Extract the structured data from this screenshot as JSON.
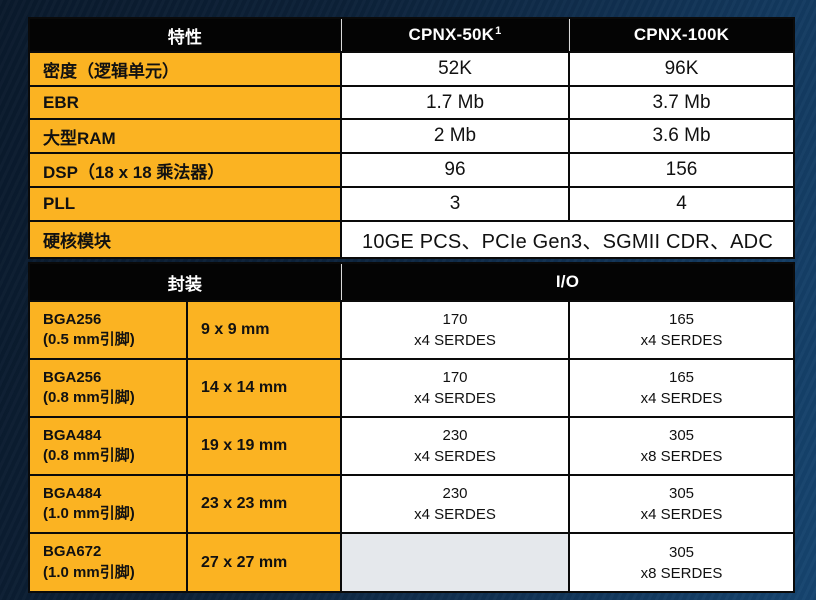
{
  "colors": {
    "accent_yellow": "#FBB322",
    "header_black": "#040404",
    "cell_white": "#FFFFFF",
    "empty_gray": "#E5E8EC",
    "background_navy": "#0E2A47"
  },
  "features_table": {
    "header": [
      "特性",
      "CPNX-50K",
      "CPNX-100K"
    ],
    "header_footnote_sup": "1",
    "rows": [
      {
        "label": "密度（逻辑单元）",
        "values": [
          "52K",
          "96K"
        ]
      },
      {
        "label": "EBR",
        "values": [
          "1.7 Mb",
          "3.7 Mb"
        ]
      },
      {
        "label": "大型RAM",
        "values": [
          "2 Mb",
          "3.6 Mb"
        ]
      },
      {
        "label": "DSP（18 x 18 乘法器）",
        "values": [
          "96",
          "156"
        ]
      },
      {
        "label": "PLL",
        "values": [
          "3",
          "4"
        ]
      },
      {
        "label": "硬核模块",
        "values": [
          "10GE PCS、PCIe Gen3、SGMII CDR、ADC"
        ],
        "span": 2
      }
    ]
  },
  "packages_table": {
    "header": [
      "封装",
      "I/O"
    ],
    "rows": [
      {
        "name": "BGA256",
        "pitch": "(0.5 mm引脚)",
        "size": "9 x 9 mm",
        "io": [
          {
            "count": "170",
            "serdes": "x4 SERDES"
          },
          {
            "count": "165",
            "serdes": "x4 SERDES"
          }
        ]
      },
      {
        "name": "BGA256",
        "pitch": "(0.8 mm引脚)",
        "size": "14 x 14 mm",
        "io": [
          {
            "count": "170",
            "serdes": "x4 SERDES"
          },
          {
            "count": "165",
            "serdes": "x4 SERDES"
          }
        ]
      },
      {
        "name": "BGA484",
        "pitch": "(0.8 mm引脚)",
        "size": "19 x 19 mm",
        "io": [
          {
            "count": "230",
            "serdes": "x4 SERDES"
          },
          {
            "count": "305",
            "serdes": "x8 SERDES"
          }
        ]
      },
      {
        "name": "BGA484",
        "pitch": "(1.0 mm引脚)",
        "size": "23 x 23 mm",
        "io": [
          {
            "count": "230",
            "serdes": "x4 SERDES"
          },
          {
            "count": "305",
            "serdes": "x4 SERDES"
          }
        ]
      },
      {
        "name": "BGA672",
        "pitch": "(1.0 mm引脚)",
        "size": "27 x 27 mm",
        "io": [
          null,
          {
            "count": "305",
            "serdes": "x8 SERDES"
          }
        ]
      }
    ]
  }
}
